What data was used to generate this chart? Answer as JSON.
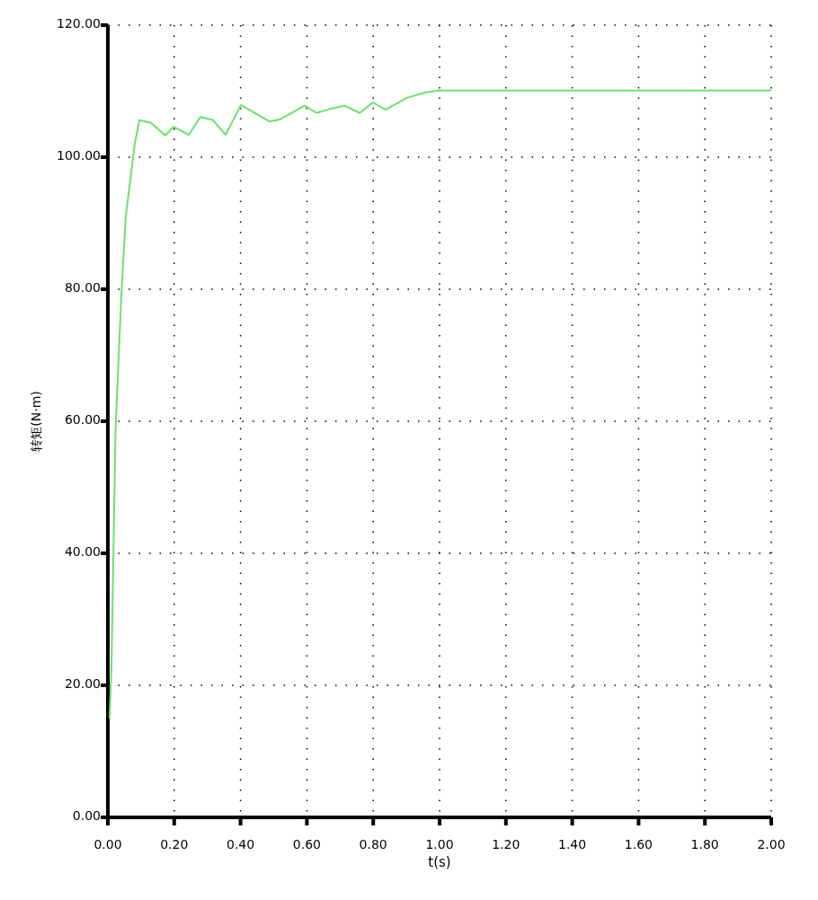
{
  "chart_data": {
    "type": "line",
    "xlabel": "t(s)",
    "ylabel": "转矩(N·m)",
    "xlim": [
      0,
      2
    ],
    "ylim": [
      0,
      120
    ],
    "xticks": [
      {
        "value": 0,
        "label": "0.00"
      },
      {
        "value": 0.2,
        "label": "0.20"
      },
      {
        "value": 0.4,
        "label": "0.40"
      },
      {
        "value": 0.6,
        "label": "0.60"
      },
      {
        "value": 0.8,
        "label": "0.80"
      },
      {
        "value": 1,
        "label": "1.00"
      },
      {
        "value": 1.2,
        "label": "1.20"
      },
      {
        "value": 1.4,
        "label": "1.40"
      },
      {
        "value": 1.6,
        "label": "1.60"
      },
      {
        "value": 1.8,
        "label": "1.80"
      },
      {
        "value": 2,
        "label": "2.00"
      }
    ],
    "yticks": [
      {
        "value": 0,
        "label": "0.00"
      },
      {
        "value": 20,
        "label": "20.00"
      },
      {
        "value": 40,
        "label": "40.00"
      },
      {
        "value": 60,
        "label": "60.00"
      },
      {
        "value": 80,
        "label": "80.00"
      },
      {
        "value": 100,
        "label": "100.00"
      },
      {
        "value": 120,
        "label": "120.00"
      }
    ],
    "grid": true,
    "series": [
      {
        "color": "#6ee06e",
        "x": [
          0.005,
          0.011,
          0.023,
          0.041,
          0.054,
          0.081,
          0.095,
          0.13,
          0.173,
          0.198,
          0.244,
          0.279,
          0.317,
          0.355,
          0.401,
          0.488,
          0.518,
          0.593,
          0.629,
          0.669,
          0.713,
          0.759,
          0.799,
          0.837,
          0.902,
          0.957,
          0.997,
          2.0
        ],
        "values": [
          15,
          23,
          58.5,
          79.6,
          91,
          102,
          105.6,
          105.2,
          103.3,
          104.6,
          103.4,
          106.1,
          105.6,
          103.4,
          107.9,
          105.4,
          105.7,
          107.8,
          106.7,
          107.3,
          107.8,
          106.7,
          108.3,
          107.2,
          109,
          109.8,
          110.1,
          110.1
        ]
      }
    ]
  }
}
